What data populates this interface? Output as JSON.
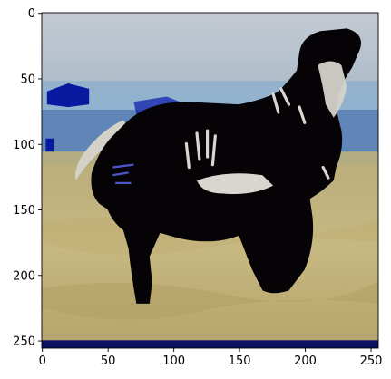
{
  "chart_data": {
    "type": "image",
    "title": "",
    "xlabel": "",
    "ylabel": "",
    "xlim": [
      -0.5,
      255.5
    ],
    "ylim": [
      255.5,
      -0.5
    ],
    "y_inverted": true,
    "x_ticks": [
      0,
      50,
      100,
      150,
      200,
      250
    ],
    "y_ticks": [
      0,
      50,
      100,
      150,
      200,
      250
    ],
    "x_tick_labels": [
      "0",
      "50",
      "100",
      "150",
      "200",
      "250"
    ],
    "y_tick_labels": [
      "0",
      "50",
      "100",
      "150",
      "200",
      "250"
    ],
    "grid": false,
    "legend": "none",
    "image_content": "zebra standing in a grassy savanna with a pale blue sky; the body is rendered almost entirely black with a few white stripe streaks; small saturated blue patches near the horizon",
    "image_resolution": [
      256,
      256
    ]
  },
  "colors": {
    "sky_top": "#c4cad2",
    "sky_mid": "#9cb0c4",
    "horizon_blue": "#3f6aa4",
    "grass_light": "#cbb97f",
    "grass_dark": "#a89a62",
    "zebra_black": "#050305",
    "stripe_white": "#d8d6cf",
    "artifact_blue": "#0a1aa0",
    "bottom_band": "#0b1060",
    "axis": "#000000"
  }
}
